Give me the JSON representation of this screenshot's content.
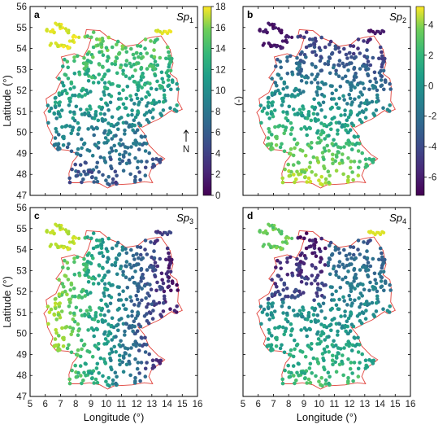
{
  "figure": {
    "x_axis_label": "Longitude (°)",
    "y_axis_label": "Latitude (°)",
    "x_ticks": [
      "5",
      "6",
      "7",
      "8",
      "9",
      "10",
      "11",
      "12",
      "13",
      "14",
      "15",
      "16"
    ],
    "y_ticks": [
      "47",
      "48",
      "49",
      "50",
      "51",
      "52",
      "53",
      "54",
      "55",
      "56"
    ],
    "north_label": "N",
    "colors": {
      "boundary": "#e0413a",
      "frame": "#000000"
    }
  },
  "panels": [
    {
      "letter": "a",
      "sp_base": "Sp",
      "sp_sub": "1",
      "colorbar": {
        "ticks": [
          "0",
          "2",
          "4",
          "6",
          "8",
          "10",
          "12",
          "14",
          "16",
          "18"
        ],
        "unit": "(-)",
        "min": 0,
        "max": 18
      }
    },
    {
      "letter": "b",
      "sp_base": "Sp",
      "sp_sub": "2",
      "colorbar": {
        "ticks": [
          "-6",
          "-4",
          "-2",
          "0",
          "2",
          "4"
        ],
        "unit": "(-)",
        "min": -7.2,
        "max": 5.2
      }
    },
    {
      "letter": "c",
      "sp_base": "Sp",
      "sp_sub": "3"
    },
    {
      "letter": "d",
      "sp_base": "Sp",
      "sp_sub": "4"
    }
  ],
  "chart_data": [
    {
      "type": "scatter",
      "panel": "a",
      "title": "Sp1",
      "xlim": [
        5,
        16
      ],
      "ylim": [
        47,
        56
      ],
      "color_scale": "viridis",
      "clim": [
        0,
        18
      ],
      "pattern": "high (green-yellow) in north and coastal islands, low (blue/purple) in south"
    },
    {
      "type": "scatter",
      "panel": "b",
      "title": "Sp2",
      "xlim": [
        5,
        16
      ],
      "ylim": [
        47,
        56
      ],
      "color_scale": "viridis",
      "clim": [
        -7.2,
        5.2
      ],
      "pattern": "high (yellow) in south-west, low (purple) in north"
    },
    {
      "type": "scatter",
      "panel": "c",
      "title": "Sp3",
      "xlim": [
        5,
        16
      ],
      "ylim": [
        47,
        56
      ],
      "color_scale": "viridis",
      "pattern": "high (yellow-green) in west, low (purple) in east"
    },
    {
      "type": "scatter",
      "panel": "d",
      "title": "Sp4",
      "xlim": [
        5,
        16
      ],
      "ylim": [
        47,
        56
      ],
      "color_scale": "viridis",
      "pattern": "low (purple) in north-west, high (green) in south-west and islands"
    }
  ]
}
